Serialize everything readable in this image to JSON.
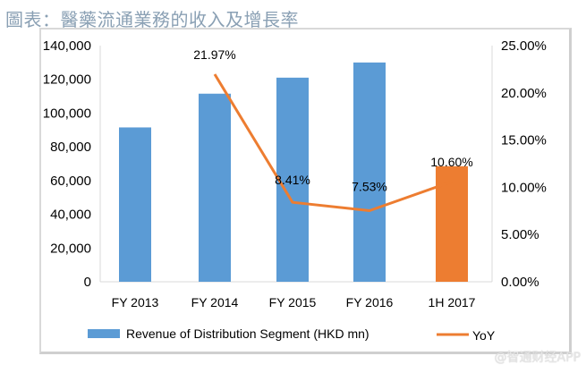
{
  "title": "圖表：醫藥流通業務的收入及增長率",
  "watermark": "@智通财经APP",
  "chart_data": {
    "type": "bar+line",
    "categories": [
      "FY 2013",
      "FY 2014",
      "FY 2015",
      "FY 2016",
      "1H 2017"
    ],
    "series": [
      {
        "name": "Revenue of Distribution Segment (HKD mn)",
        "type": "bar",
        "axis": "left",
        "values": [
          91500,
          111500,
          121000,
          130000,
          68500
        ],
        "color": "#5b9bd5",
        "highlight": {
          "index": 4,
          "color": "#ed7d31"
        }
      },
      {
        "name": "YoY",
        "type": "line",
        "axis": "right",
        "values": [
          null,
          21.97,
          8.41,
          7.53,
          10.6
        ],
        "labels": [
          "",
          "21.97%",
          "8.41%",
          "7.53%",
          "10.60%"
        ],
        "color": "#ed7d31"
      }
    ],
    "left_axis": {
      "ylim": [
        0,
        140000
      ],
      "ticks": [
        "0",
        "20,000",
        "40,000",
        "60,000",
        "80,000",
        "100,000",
        "120,000",
        "140,000"
      ]
    },
    "right_axis": {
      "ylim": [
        0,
        25
      ],
      "ticks": [
        "0.00%",
        "5.00%",
        "10.00%",
        "15.00%",
        "20.00%",
        "25.00%"
      ]
    },
    "grid": false,
    "legend": "bottom"
  }
}
